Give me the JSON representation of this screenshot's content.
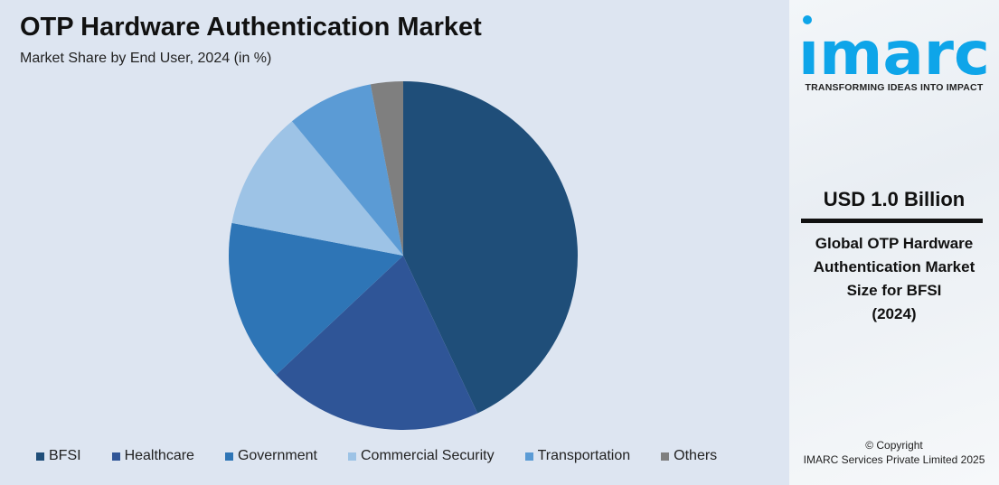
{
  "header": {
    "title": "OTP Hardware Authentication Market",
    "subtitle": "Market Share by End User, 2024 (in %)"
  },
  "chart_data": {
    "type": "pie",
    "title": "OTP Hardware Authentication Market",
    "subtitle": "Market Share by End User, 2024 (in %)",
    "categories": [
      "BFSI",
      "Healthcare",
      "Government",
      "Commercial Security",
      "Transportation",
      "Others"
    ],
    "values": [
      43,
      20,
      15,
      11,
      8,
      3
    ],
    "colors": [
      "#1f4e79",
      "#2f5597",
      "#2e75b6",
      "#9dc3e6",
      "#5b9bd5",
      "#7f7f7f"
    ],
    "start_angle": "12 o'clock, clockwise",
    "legend": "bottom"
  },
  "sidebar": {
    "logo_text": "imarc",
    "tagline": "TRANSFORMING IDEAS INTO IMPACT",
    "value": "USD 1.0 Billion",
    "desc_lines": [
      "Global OTP Hardware",
      "Authentication Market",
      "Size for BFSI",
      "(2024)"
    ],
    "copyright_line1": "© Copyright",
    "copyright_line2": "IMARC Services Private Limited 2025",
    "brand_color": "#0ea5e9"
  }
}
